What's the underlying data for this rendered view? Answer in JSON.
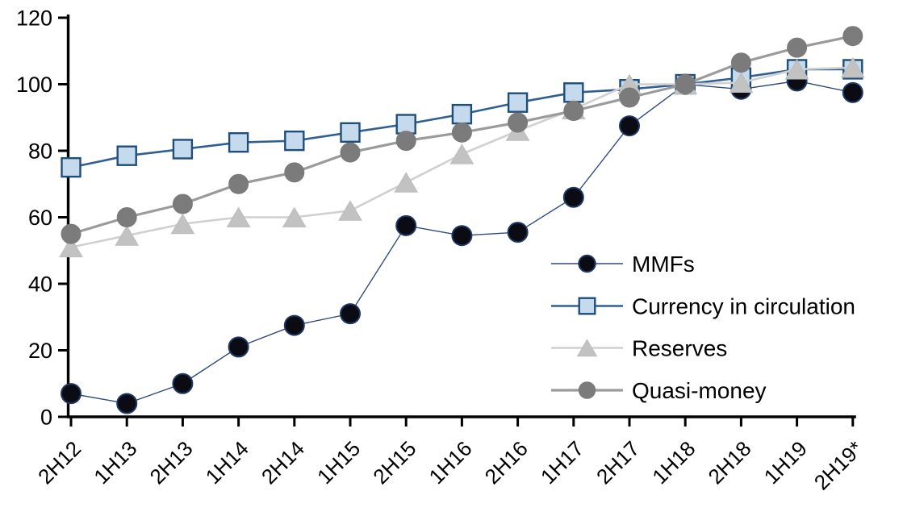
{
  "chart_data": {
    "type": "line",
    "title": "",
    "subtitle": "",
    "categories": [
      "2H12",
      "1H13",
      "2H13",
      "1H14",
      "2H14",
      "1H15",
      "2H15",
      "1H16",
      "2H16",
      "1H17",
      "2H17",
      "1H18",
      "2H18",
      "1H19",
      "2H19*"
    ],
    "series": [
      {
        "name": "MMFs",
        "key": "mmfs",
        "marker": "circle",
        "marker_fill": "#0b0b14",
        "marker_stroke": "#1f3864",
        "line_color": "#30497c",
        "values": [
          7,
          4,
          10,
          21,
          27.5,
          31,
          57.5,
          54.5,
          55.5,
          66,
          87.5,
          100,
          98.5,
          101,
          97.5
        ]
      },
      {
        "name": "Currency in circulation",
        "key": "currency-in-circulation",
        "marker": "square",
        "marker_fill": "#c6daee",
        "marker_stroke": "#1f4e79",
        "line_color": "#2f6091",
        "values": [
          75,
          78.5,
          80.5,
          82.5,
          83,
          85.5,
          88,
          91,
          94.5,
          97.5,
          98.5,
          100,
          102,
          104.5,
          104.5
        ]
      },
      {
        "name": "Reserves",
        "key": "reserves",
        "marker": "triangle",
        "marker_fill": "#c2c2c2",
        "marker_stroke": "#bdbdbd",
        "line_color": "#d0d0d0",
        "values": [
          51,
          54.5,
          58,
          60,
          60,
          62,
          70.5,
          79,
          86,
          92.5,
          100,
          100,
          100.5,
          104.5,
          105
        ]
      },
      {
        "name": "Quasi-money",
        "key": "quasi-money",
        "marker": "circle",
        "marker_fill": "#7b7b7b",
        "marker_stroke": "#7b7b7b",
        "line_color": "#9b9b9b",
        "values": [
          55,
          60,
          64,
          70,
          73.5,
          79.5,
          83,
          85.5,
          88.5,
          92,
          96,
          100,
          106.5,
          111,
          114.5
        ]
      }
    ],
    "xlabel": "",
    "ylabel": "",
    "ylim": [
      0,
      120
    ],
    "y_tick_step": 20,
    "y_tick_labels": [
      "0",
      "20",
      "40",
      "60",
      "80",
      "100",
      "120"
    ],
    "x_tick_rotation_deg": 45,
    "grid": false,
    "legend_position": "inside-right",
    "legend_entries": [
      "MMFs",
      "Currency in circulation",
      "Reserves",
      "Quasi-money"
    ],
    "axis_color": "#000000",
    "background_color": "#ffffff"
  }
}
